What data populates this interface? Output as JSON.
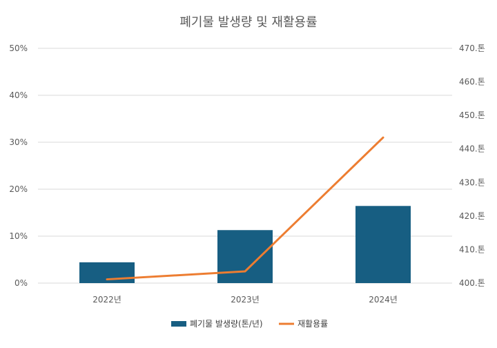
{
  "chart_data": {
    "type": "bar",
    "title": "폐기물 발생량 및 재활용률",
    "categories": [
      "2022년",
      "2023년",
      "2024년"
    ],
    "series": [
      {
        "name": "폐기물 발생량(톤/년)",
        "type": "bar",
        "axis": "right",
        "values": [
          406.2,
          415.8,
          423.0
        ]
      },
      {
        "name": "재활용률",
        "type": "line",
        "axis": "left",
        "values": [
          0.008,
          0.025,
          0.31
        ]
      }
    ],
    "left_axis": {
      "ylim": [
        0,
        0.5
      ],
      "ticks": [
        0,
        0.1,
        0.2,
        0.3,
        0.4,
        0.5
      ],
      "tick_labels": [
        "0%",
        "10%",
        "20%",
        "30%",
        "40%",
        "50%"
      ]
    },
    "right_axis": {
      "ylim": [
        400,
        470
      ],
      "ticks": [
        400,
        410,
        420,
        430,
        440,
        450,
        460,
        470
      ],
      "tick_labels": [
        "400.톤",
        "410.톤",
        "420.톤",
        "430.톤",
        "440.톤",
        "450.톤",
        "460.톤",
        "470.톤"
      ]
    },
    "grid": true,
    "legend": "bottom"
  },
  "colors": {
    "bar": "#175e82",
    "line": "#ed7d31",
    "grid": "#d9d9d9",
    "text": "#595959"
  }
}
